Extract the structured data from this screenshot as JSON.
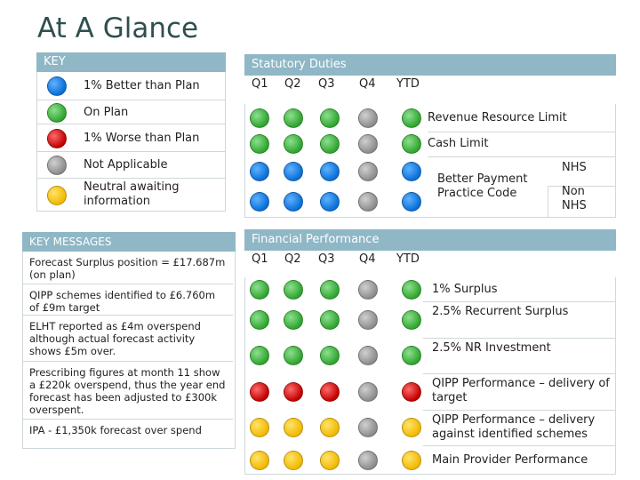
{
  "title": "At A Glance",
  "key": {
    "header": "KEY",
    "items": [
      {
        "label": "1% Better than Plan",
        "color": "blue"
      },
      {
        "label": "On Plan",
        "color": "green"
      },
      {
        "label": "1% Worse than Plan",
        "color": "red"
      },
      {
        "label": "Not Applicable",
        "color": "grey"
      },
      {
        "label": "Neutral awaiting information",
        "color": "yellow"
      }
    ]
  },
  "statutory": {
    "header": "Statutory Duties",
    "columns": [
      "Q1",
      "Q2",
      "Q3",
      "Q4",
      "YTD"
    ],
    "rows": [
      {
        "label": "Revenue Resource Limit",
        "dots": [
          "green",
          "green",
          "green",
          "grey",
          "green"
        ]
      },
      {
        "label": "Cash Limit",
        "dots": [
          "green",
          "green",
          "green",
          "grey",
          "green"
        ]
      },
      {
        "label": "Better Payment Practice Code",
        "sublabel": "NHS",
        "dots": [
          "blue",
          "blue",
          "blue",
          "grey",
          "blue"
        ]
      },
      {
        "sublabel": "Non NHS",
        "dots": [
          "blue",
          "blue",
          "blue",
          "grey",
          "blue"
        ]
      }
    ]
  },
  "key_messages": {
    "header": "KEY MESSAGES",
    "items": [
      "Forecast Surplus position = £17.687m  (on plan)",
      "QIPP schemes identified to £6.760m of £9m target",
      "ELHT reported as £4m overspend although actual forecast activity shows £5m over.",
      "Prescribing figures at month 11 show a £220k overspend, thus the year end forecast has been adjusted to £300k overspent.",
      "IPA - £1,350k forecast over spend"
    ]
  },
  "financial": {
    "header": "Financial Performance",
    "columns": [
      "Q1",
      "Q2",
      "Q3",
      "Q4",
      "YTD"
    ],
    "rows": [
      {
        "label": "1% Surplus",
        "dots": [
          "green",
          "green",
          "green",
          "grey",
          "green"
        ]
      },
      {
        "label": "2.5% Recurrent Surplus",
        "dots": [
          "green",
          "green",
          "green",
          "grey",
          "green"
        ]
      },
      {
        "label": "2.5% NR Investment",
        "dots": [
          "green",
          "green",
          "green",
          "grey",
          "green"
        ]
      },
      {
        "label": "QIPP Performance – delivery of target",
        "dots": [
          "red",
          "red",
          "red",
          "grey",
          "red"
        ]
      },
      {
        "label": "QIPP Performance – delivery against identified schemes",
        "dots": [
          "yellow",
          "yellow",
          "yellow",
          "grey",
          "yellow"
        ]
      },
      {
        "label": "Main Provider Performance",
        "dots": [
          "yellow",
          "yellow",
          "yellow",
          "grey",
          "yellow"
        ]
      }
    ]
  }
}
